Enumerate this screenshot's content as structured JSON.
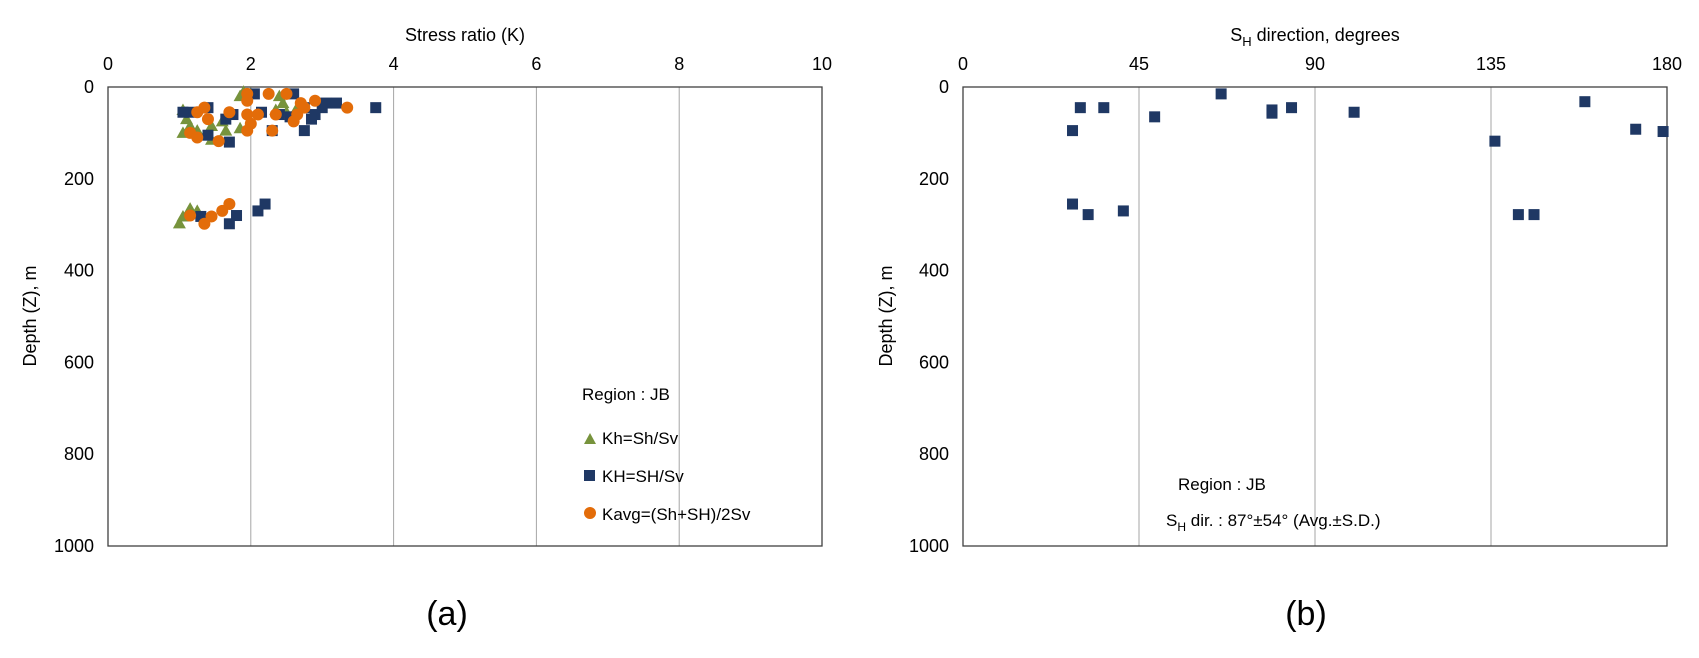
{
  "chart_data": [
    {
      "type": "scatter",
      "panel_label": "(a)",
      "title": "",
      "xlabel": "Stress ratio (K)",
      "ylabel": "Depth (Z), m",
      "xlim": [
        0,
        10
      ],
      "ylim": [
        1000,
        0
      ],
      "x_ticks": [
        "0",
        "2",
        "4",
        "6",
        "8",
        "10"
      ],
      "y_ticks": [
        "0",
        "200",
        "400",
        "600",
        "800",
        "1000"
      ],
      "x_axis_position": "top",
      "y_axis_inverted": true,
      "grid": "vertical lines",
      "legend": {
        "position": "bottom-right",
        "title": "Region : JB",
        "entries": [
          "Kh=Sh/Sv",
          "KH=SH/Sv",
          "Kavg=(Sh+SH)/2Sv"
        ]
      },
      "series": [
        {
          "name": "Kh=Sh/Sv",
          "marker": "triangle",
          "color": "#77933c",
          "points": [
            [
              1.9,
              10
            ],
            [
              1.85,
              20
            ],
            [
              2.0,
              15
            ],
            [
              2.4,
              20
            ],
            [
              2.45,
              35
            ],
            [
              2.35,
              50
            ],
            [
              2.5,
              55
            ],
            [
              2.65,
              45
            ],
            [
              1.05,
              50
            ],
            [
              1.1,
              70
            ],
            [
              1.15,
              85
            ],
            [
              1.05,
              100
            ],
            [
              1.25,
              95
            ],
            [
              1.45,
              85
            ],
            [
              1.6,
              75
            ],
            [
              1.65,
              95
            ],
            [
              1.85,
              90
            ],
            [
              1.45,
              115
            ],
            [
              1.15,
              265
            ],
            [
              1.25,
              270
            ],
            [
              1.05,
              282
            ],
            [
              1.0,
              297
            ]
          ]
        },
        {
          "name": "KH=SH/Sv",
          "marker": "square",
          "color": "#1f3864",
          "points": [
            [
              2.05,
              15
            ],
            [
              2.6,
              15
            ],
            [
              2.55,
              65
            ],
            [
              2.75,
              45
            ],
            [
              3.0,
              45
            ],
            [
              3.05,
              35
            ],
            [
              3.2,
              35
            ],
            [
              3.75,
              45
            ],
            [
              2.9,
              60
            ],
            [
              2.85,
              70
            ],
            [
              2.75,
              95
            ],
            [
              2.4,
              60
            ],
            [
              2.3,
              95
            ],
            [
              2.15,
              55
            ],
            [
              1.75,
              60
            ],
            [
              1.65,
              70
            ],
            [
              1.4,
              45
            ],
            [
              1.15,
              55
            ],
            [
              1.05,
              55
            ],
            [
              1.4,
              105
            ],
            [
              1.7,
              120
            ],
            [
              2.2,
              255
            ],
            [
              2.1,
              270
            ],
            [
              1.8,
              280
            ],
            [
              1.7,
              298
            ],
            [
              1.3,
              282
            ]
          ]
        },
        {
          "name": "Kavg=(Sh+SH)/2Sv",
          "marker": "circle",
          "color": "#e36c09",
          "points": [
            [
              1.95,
              15
            ],
            [
              2.25,
              15
            ],
            [
              2.5,
              15
            ],
            [
              1.95,
              30
            ],
            [
              2.7,
              35
            ],
            [
              2.9,
              30
            ],
            [
              2.75,
              45
            ],
            [
              3.35,
              45
            ],
            [
              1.35,
              45
            ],
            [
              1.25,
              55
            ],
            [
              1.7,
              55
            ],
            [
              1.95,
              60
            ],
            [
              2.1,
              60
            ],
            [
              2.35,
              60
            ],
            [
              2.65,
              60
            ],
            [
              2.6,
              75
            ],
            [
              2.0,
              80
            ],
            [
              1.95,
              95
            ],
            [
              2.3,
              95
            ],
            [
              1.15,
              100
            ],
            [
              1.25,
              110
            ],
            [
              1.55,
              118
            ],
            [
              1.4,
              70
            ],
            [
              1.7,
              255
            ],
            [
              1.6,
              270
            ],
            [
              1.15,
              280
            ],
            [
              1.45,
              282
            ],
            [
              1.35,
              298
            ]
          ]
        }
      ]
    },
    {
      "type": "scatter",
      "panel_label": "(b)",
      "title": "",
      "xlabel_main": "S",
      "xlabel_sub": "H",
      "xlabel_rest": " direction, degrees",
      "ylabel": "Depth (Z), m",
      "xlim": [
        0,
        180
      ],
      "ylim": [
        1000,
        0
      ],
      "x_ticks": [
        "0",
        "45",
        "90",
        "135",
        "180"
      ],
      "y_ticks": [
        "0",
        "200",
        "400",
        "600",
        "800",
        "1000"
      ],
      "x_axis_position": "top",
      "y_axis_inverted": true,
      "grid": "vertical lines",
      "annotation": {
        "position": "bottom-center",
        "line1": "Region : JB",
        "line2_main": "S",
        "line2_sub": "H",
        "line2_rest": " dir.  : 87°±54° (Avg.±S.D.)"
      },
      "series": [
        {
          "name": "",
          "marker": "square",
          "color": "#1f3864",
          "points": [
            [
              66,
              15
            ],
            [
              30,
              45
            ],
            [
              36,
              45
            ],
            [
              49,
              65
            ],
            [
              79,
              50
            ],
            [
              79,
              57
            ],
            [
              84,
              45
            ],
            [
              100,
              55
            ],
            [
              28,
              95
            ],
            [
              159,
              32
            ],
            [
              172,
              92
            ],
            [
              179,
              97
            ],
            [
              136,
              118
            ],
            [
              28,
              255
            ],
            [
              32,
              278
            ],
            [
              41,
              270
            ],
            [
              142,
              278
            ],
            [
              146,
              278
            ]
          ]
        }
      ]
    }
  ]
}
